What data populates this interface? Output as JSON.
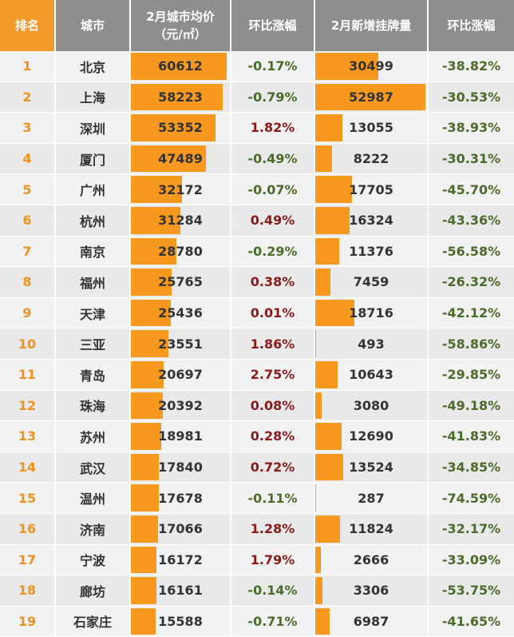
{
  "colors": {
    "header_rank_bg": "#f39a2c",
    "header_bg": "#8e8e8e",
    "bar": "#f7991f",
    "rank_text": "#f0921f",
    "negative_change": "#4b6b2a",
    "positive_change": "#8b1a1a"
  },
  "header": {
    "rank": "排名",
    "city": "城市",
    "price_line1": "2月城市均价",
    "price_line2": "（元/㎡）",
    "price_change": "环比涨幅",
    "listings": "2月新增挂牌量",
    "listings_change": "环比涨幅"
  },
  "chart_data": {
    "type": "table",
    "columns": [
      "排名",
      "城市",
      "2月城市均价（元/㎡）",
      "环比涨幅",
      "2月新增挂牌量",
      "环比涨幅"
    ],
    "price_max": 60612,
    "listings_max": 52987,
    "rows": [
      {
        "rank": "1",
        "city": "北京",
        "price": 60612,
        "price_change": "-0.17%",
        "listings": 30499,
        "listings_change": "-38.82%"
      },
      {
        "rank": "2",
        "city": "上海",
        "price": 58223,
        "price_change": "-0.79%",
        "listings": 52987,
        "listings_change": "-30.53%"
      },
      {
        "rank": "3",
        "city": "深圳",
        "price": 53352,
        "price_change": "1.82%",
        "listings": 13055,
        "listings_change": "-38.93%"
      },
      {
        "rank": "4",
        "city": "厦门",
        "price": 47489,
        "price_change": "-0.49%",
        "listings": 8222,
        "listings_change": "-30.31%"
      },
      {
        "rank": "5",
        "city": "广州",
        "price": 32172,
        "price_change": "-0.07%",
        "listings": 17705,
        "listings_change": "-45.70%"
      },
      {
        "rank": "6",
        "city": "杭州",
        "price": 31284,
        "price_change": "0.49%",
        "listings": 16324,
        "listings_change": "-43.36%"
      },
      {
        "rank": "7",
        "city": "南京",
        "price": 28780,
        "price_change": "-0.29%",
        "listings": 11376,
        "listings_change": "-56.58%"
      },
      {
        "rank": "8",
        "city": "福州",
        "price": 25765,
        "price_change": "0.38%",
        "listings": 7459,
        "listings_change": "-26.32%"
      },
      {
        "rank": "9",
        "city": "天津",
        "price": 25436,
        "price_change": "0.01%",
        "listings": 18716,
        "listings_change": "-42.12%"
      },
      {
        "rank": "10",
        "city": "三亚",
        "price": 23551,
        "price_change": "1.86%",
        "listings": 493,
        "listings_change": "-58.86%"
      },
      {
        "rank": "11",
        "city": "青岛",
        "price": 20697,
        "price_change": "2.75%",
        "listings": 10643,
        "listings_change": "-29.85%"
      },
      {
        "rank": "12",
        "city": "珠海",
        "price": 20392,
        "price_change": "0.08%",
        "listings": 3080,
        "listings_change": "-49.18%"
      },
      {
        "rank": "13",
        "city": "苏州",
        "price": 18981,
        "price_change": "0.28%",
        "listings": 12690,
        "listings_change": "-41.83%"
      },
      {
        "rank": "14",
        "city": "武汉",
        "price": 17840,
        "price_change": "0.72%",
        "listings": 13524,
        "listings_change": "-34.85%"
      },
      {
        "rank": "15",
        "city": "温州",
        "price": 17678,
        "price_change": "-0.11%",
        "listings": 287,
        "listings_change": "-74.59%"
      },
      {
        "rank": "16",
        "city": "济南",
        "price": 17066,
        "price_change": "1.28%",
        "listings": 11824,
        "listings_change": "-32.17%"
      },
      {
        "rank": "17",
        "city": "宁波",
        "price": 16172,
        "price_change": "1.79%",
        "listings": 2666,
        "listings_change": "-33.09%"
      },
      {
        "rank": "18",
        "city": "廊坊",
        "price": 16161,
        "price_change": "-0.14%",
        "listings": 3306,
        "listings_change": "-53.75%"
      },
      {
        "rank": "19",
        "city": "石家庄",
        "price": 15588,
        "price_change": "-0.71%",
        "listings": 6987,
        "listings_change": "-41.65%"
      }
    ]
  }
}
